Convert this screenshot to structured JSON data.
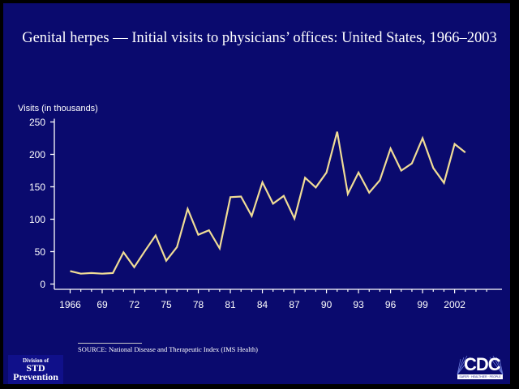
{
  "title": "Genital herpes  — Initial visits to physicians’ offices: United States, 1966–2003",
  "source": "SOURCE: National Disease and Therapeutic Index (IMS Health)",
  "logos": {
    "std": {
      "line1": "Division of",
      "line2": "STD",
      "line3": "Prevention"
    },
    "cdc": {
      "name": "CDC",
      "tagline": "SAFER · HEALTHIER · PEOPLE"
    }
  },
  "colors": {
    "background": "#0a0a6e",
    "frame": "#000000",
    "line": "#f0dc96",
    "axis": "#ffffff",
    "text": "#ffffff"
  },
  "chart_data": {
    "type": "line",
    "title": "Genital herpes  — Initial visits to physicians’ offices: United States, 1966–2003",
    "xlabel": "",
    "ylabel": "Visits (in thousands)",
    "ylim": [
      0,
      250
    ],
    "xlim": [
      1966,
      2005
    ],
    "yticks": [
      0,
      50,
      100,
      150,
      200,
      250
    ],
    "xtick_values": [
      1966,
      1969,
      1972,
      1975,
      1978,
      1981,
      1984,
      1987,
      1990,
      1993,
      1996,
      1999,
      2002
    ],
    "xtick_labels": [
      "1966",
      "69",
      "72",
      "75",
      "78",
      "81",
      "84",
      "87",
      "90",
      "93",
      "96",
      "99",
      "2002"
    ],
    "grid": false,
    "legend": "none",
    "series": [
      {
        "name": "Initial visits",
        "x": [
          1966,
          1967,
          1968,
          1969,
          1970,
          1971,
          1972,
          1973,
          1974,
          1975,
          1976,
          1977,
          1978,
          1979,
          1980,
          1981,
          1982,
          1983,
          1984,
          1985,
          1986,
          1987,
          1988,
          1989,
          1990,
          1991,
          1992,
          1993,
          1994,
          1995,
          1996,
          1997,
          1998,
          1999,
          2000,
          2001,
          2002,
          2003
        ],
        "values": [
          20,
          16,
          17,
          16,
          17,
          49,
          26,
          51,
          75,
          36,
          57,
          116,
          76,
          83,
          55,
          134,
          135,
          105,
          157,
          124,
          136,
          101,
          164,
          149,
          172,
          235,
          139,
          172,
          141,
          160,
          209,
          175,
          186,
          225,
          179,
          156,
          216,
          203
        ]
      }
    ]
  }
}
